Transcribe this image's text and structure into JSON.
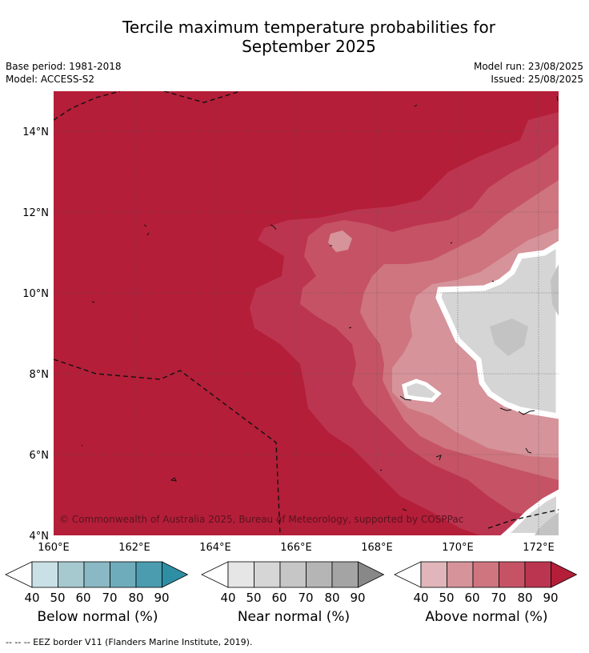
{
  "header": {
    "title_line1": "Tercile maximum temperature probabilities for",
    "title_line2": "September 2025",
    "base_period": "Base period: 1981-2018",
    "model": "Model: ACCESS-S2",
    "model_run": "Model run: 23/08/2025",
    "issued": "Issued: 25/08/2025"
  },
  "map": {
    "lat_labels": [
      "14°N",
      "12°N",
      "10°N",
      "8°N",
      "6°N",
      "4°N"
    ],
    "lon_labels": [
      "160°E",
      "162°E",
      "164°E",
      "166°E",
      "168°E",
      "170°E",
      "172°E"
    ],
    "copyright": "© Commonwealth of Australia 2025, Bureau of Meteorology, supported by COSPPac",
    "dominant_category": "Above normal",
    "colors": {
      "above_90": "#b41e38",
      "above_80": "#bc3550",
      "above_70": "#c55365",
      "above_60": "#cf7580",
      "above_50": "#d6939a",
      "near": "#d5d5d5",
      "near_dark": "#c3c3c3"
    }
  },
  "legends": [
    {
      "label": "Below normal (%)",
      "ticks": [
        "40",
        "50",
        "60",
        "70",
        "80",
        "90"
      ],
      "colors": [
        "#c9e1e6",
        "#a6c9d0",
        "#8ab8c4",
        "#6facbb",
        "#4b9cae",
        "#2e8ea4"
      ]
    },
    {
      "label": "Near normal (%)",
      "ticks": [
        "40",
        "50",
        "60",
        "70",
        "80",
        "90"
      ],
      "colors": [
        "#e6e6e6",
        "#d6d6d6",
        "#c6c6c6",
        "#b5b5b5",
        "#a4a4a4",
        "#888888"
      ]
    },
    {
      "label": "Above normal (%)",
      "ticks": [
        "40",
        "50",
        "60",
        "70",
        "80",
        "90"
      ],
      "colors": [
        "#e0b6bb",
        "#d6939a",
        "#cf7580",
        "#c55365",
        "#bc3550",
        "#b41e38"
      ]
    }
  ],
  "footnote": "--  --  -- EEZ border V11 (Flanders Marine Institute, 2019)."
}
